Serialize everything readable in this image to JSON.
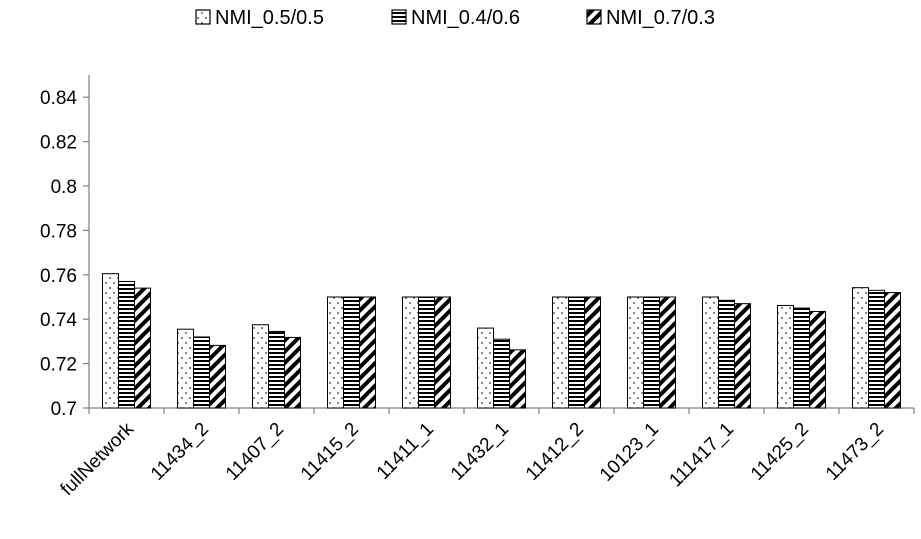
{
  "chart_data": {
    "type": "bar",
    "categories": [
      "fullNetwork",
      "11434_2",
      "11407_2",
      "11415_2",
      "11411_1",
      "11432_1",
      "11412_2",
      "10123_1",
      "111417_1",
      "11425_2",
      "11473_2"
    ],
    "series": [
      {
        "name": "NMI_0.5/0.5",
        "pattern": "dots",
        "values": [
          0.7605,
          0.7355,
          0.7375,
          0.75,
          0.75,
          0.736,
          0.75,
          0.75,
          0.75,
          0.7462,
          0.7542
        ]
      },
      {
        "name": "NMI_0.4/0.6",
        "pattern": "horizontal-stripes",
        "values": [
          0.757,
          0.732,
          0.7345,
          0.75,
          0.75,
          0.731,
          0.75,
          0.75,
          0.7485,
          0.745,
          0.753
        ]
      },
      {
        "name": "NMI_0.7/0.3",
        "pattern": "diagonal-stripes",
        "values": [
          0.754,
          0.7282,
          0.7318,
          0.75,
          0.75,
          0.7262,
          0.75,
          0.75,
          0.747,
          0.7435,
          0.752
        ]
      }
    ],
    "ylim": [
      0.7,
      0.85
    ],
    "yticks": [
      "0.7",
      "0.72",
      "0.74",
      "0.76",
      "0.78",
      "0.8",
      "0.82",
      "0.84"
    ],
    "ytick_values": [
      0.7,
      0.72,
      0.74,
      0.76,
      0.78,
      0.8,
      0.82,
      0.84
    ],
    "grid": false,
    "legend_position": "top-center",
    "colors": {
      "bar_fill": "#ffffff",
      "stroke": "#000000",
      "axis": "#808080"
    }
  }
}
